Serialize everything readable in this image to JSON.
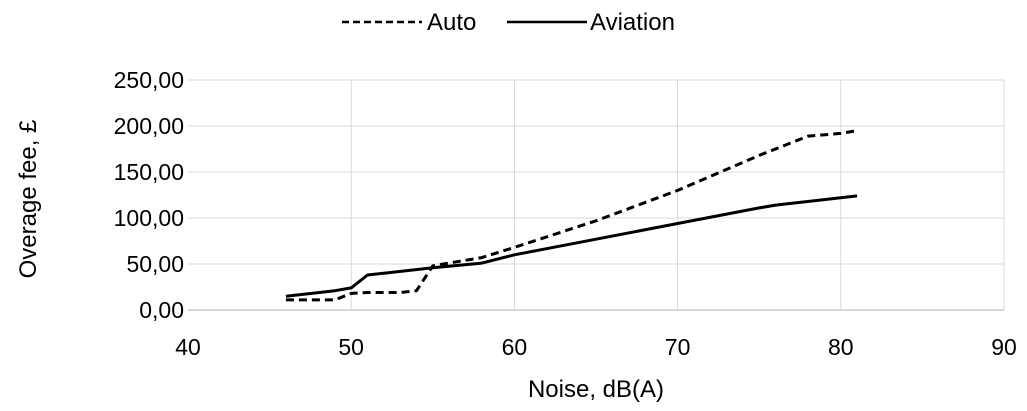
{
  "chart_data": {
    "type": "line",
    "xlabel": "Noise, dB(A)",
    "ylabel": "Overage fee, £",
    "xlim": [
      40,
      90
    ],
    "ylim": [
      0,
      250
    ],
    "x_ticks": [
      "40",
      "50",
      "60",
      "70",
      "80",
      "90"
    ],
    "y_ticks": [
      "0,00",
      "50,00",
      "100,00",
      "150,00",
      "200,00",
      "250,00"
    ],
    "grid": true,
    "legend_position": "top",
    "series": [
      {
        "name": "Auto",
        "style": "dashed",
        "color": "#000000",
        "x": [
          46,
          49,
          50,
          51,
          53,
          54,
          55,
          58,
          60,
          65,
          70,
          75,
          78,
          80,
          81
        ],
        "y": [
          11,
          11,
          18,
          19,
          19,
          21,
          48,
          57,
          68,
          97,
          130,
          168,
          189,
          192,
          195
        ]
      },
      {
        "name": "Aviation",
        "style": "solid",
        "color": "#000000",
        "x": [
          46,
          49,
          50,
          51,
          52,
          55,
          58,
          60,
          65,
          70,
          75,
          76,
          80,
          81
        ],
        "y": [
          15,
          21,
          24,
          38,
          40,
          46,
          51,
          60,
          77,
          94,
          111,
          114,
          122,
          124
        ]
      }
    ]
  }
}
